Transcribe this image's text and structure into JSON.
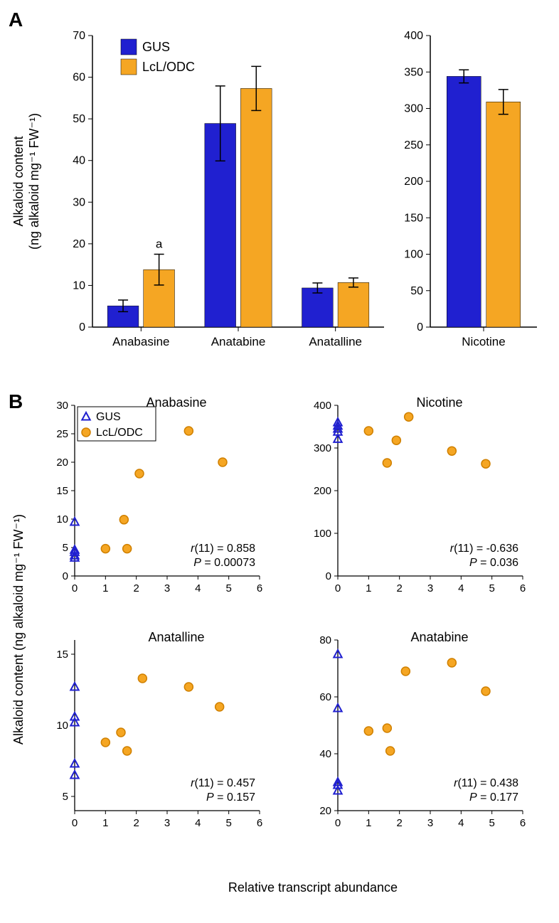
{
  "panelA": {
    "label": "A",
    "left_chart": {
      "type": "bar",
      "ylabel": "Alkaloid content\n(ng alkaloid mg⁻¹ FW⁻¹)",
      "ylim": [
        0,
        70
      ],
      "ytick_step": 10,
      "categories": [
        "Anabasine",
        "Anatabine",
        "Anatalline"
      ],
      "series": [
        {
          "name": "GUS",
          "color": "#2020d0",
          "values": [
            5.1,
            48.9,
            9.4
          ],
          "err": [
            1.4,
            9.0,
            1.2
          ]
        },
        {
          "name": "LcL/ODC",
          "color": "#f5a623",
          "values": [
            13.8,
            57.3,
            10.7
          ],
          "err": [
            3.7,
            5.3,
            1.1
          ]
        }
      ],
      "annotations": [
        {
          "text": "a",
          "cat_idx": 0,
          "series_idx": 1,
          "y_offset": 19
        }
      ],
      "bar_width": 0.32,
      "bar_gap": 0.05,
      "axis_color": "#000000",
      "text_color": "#000000",
      "label_fontsize": 18,
      "tick_fontsize": 16
    },
    "right_chart": {
      "type": "bar",
      "ylim": [
        0,
        400
      ],
      "ytick_step": 50,
      "categories": [
        "Nicotine"
      ],
      "series": [
        {
          "name": "GUS",
          "color": "#2020d0",
          "values": [
            344
          ],
          "err": [
            9
          ]
        },
        {
          "name": "LcL/ODC",
          "color": "#f5a623",
          "values": [
            309
          ],
          "err": [
            17
          ]
        }
      ],
      "bar_width": 0.32,
      "bar_gap": 0.05,
      "axis_color": "#000000",
      "text_color": "#000000",
      "tick_fontsize": 16
    },
    "legend": {
      "items": [
        {
          "label": "GUS",
          "color": "#2020d0"
        },
        {
          "label": "LcL/ODC",
          "color": "#f5a623"
        }
      ],
      "fontsize": 18
    }
  },
  "panelB": {
    "label": "B",
    "ylabel": "Alkaloid content (ng alkaloid mg⁻¹ FW⁻¹)",
    "xlabel": "Relative transcript abundance",
    "legend": {
      "items": [
        {
          "label": "GUS",
          "marker": "triangle",
          "stroke": "#2020d0",
          "fill": "none"
        },
        {
          "label": "LcL/ODC",
          "marker": "circle",
          "stroke": "#d08000",
          "fill": "#f5a623"
        }
      ],
      "fontsize": 16
    },
    "charts": [
      {
        "title": "Anabasine",
        "xlim": [
          0,
          6
        ],
        "xtick_step": 1,
        "ylim": [
          0,
          30
        ],
        "ytick_step": 5,
        "gus_points": [
          [
            0,
            9.5
          ],
          [
            0,
            4.2
          ],
          [
            0,
            4.6
          ],
          [
            0,
            3.6
          ],
          [
            0,
            3.2
          ]
        ],
        "lcl_points": [
          [
            1.0,
            4.8
          ],
          [
            1.6,
            9.9
          ],
          [
            1.7,
            4.8
          ],
          [
            2.1,
            18.0
          ],
          [
            3.7,
            25.5
          ],
          [
            4.8,
            20.0
          ]
        ],
        "stats": {
          "r_df": "11",
          "r": "0.858",
          "p": "0.00073"
        }
      },
      {
        "title": "Nicotine",
        "xlim": [
          0,
          6
        ],
        "xtick_step": 1,
        "ylim": [
          0,
          400
        ],
        "ytick_step": 100,
        "gus_points": [
          [
            0,
            360
          ],
          [
            0,
            352
          ],
          [
            0,
            345
          ],
          [
            0,
            338
          ],
          [
            0,
            321
          ]
        ],
        "lcl_points": [
          [
            1.0,
            340
          ],
          [
            1.6,
            265
          ],
          [
            1.9,
            318
          ],
          [
            2.3,
            373
          ],
          [
            3.7,
            293
          ],
          [
            4.8,
            263
          ]
        ],
        "stats": {
          "r_df": "11",
          "r": "-0.636",
          "p": "0.036"
        }
      },
      {
        "title": "Anatalline",
        "xlim": [
          0,
          6
        ],
        "xtick_step": 1,
        "ylim": [
          4,
          16
        ],
        "yticks": [
          5,
          10,
          15
        ],
        "gus_points": [
          [
            0,
            12.7
          ],
          [
            0,
            10.6
          ],
          [
            0,
            10.2
          ],
          [
            0,
            7.3
          ],
          [
            0,
            6.5
          ]
        ],
        "lcl_points": [
          [
            1.0,
            8.8
          ],
          [
            1.5,
            9.5
          ],
          [
            1.7,
            8.2
          ],
          [
            2.2,
            13.3
          ],
          [
            3.7,
            12.7
          ],
          [
            4.7,
            11.3
          ]
        ],
        "stats": {
          "r_df": "11",
          "r": "0.457",
          "p": "0.157"
        }
      },
      {
        "title": "Anatabine",
        "xlim": [
          0,
          6
        ],
        "xtick_step": 1,
        "ylim": [
          20,
          80
        ],
        "ytick_step": 20,
        "gus_points": [
          [
            0,
            75
          ],
          [
            0,
            56
          ],
          [
            0,
            30
          ],
          [
            0,
            29
          ],
          [
            0,
            27
          ]
        ],
        "lcl_points": [
          [
            1.0,
            48
          ],
          [
            1.6,
            49
          ],
          [
            1.7,
            41
          ],
          [
            2.2,
            69
          ],
          [
            3.7,
            72
          ],
          [
            4.8,
            62
          ]
        ],
        "stats": {
          "r_df": "11",
          "r": "0.438",
          "p": "0.177"
        }
      }
    ],
    "marker_size": 6,
    "gus_color": "#2020d0",
    "lcl_fill": "#f5a623",
    "lcl_stroke": "#d08000",
    "axis_color": "#000000",
    "tick_fontsize": 15,
    "title_fontsize": 18,
    "stat_fontsize": 16
  }
}
